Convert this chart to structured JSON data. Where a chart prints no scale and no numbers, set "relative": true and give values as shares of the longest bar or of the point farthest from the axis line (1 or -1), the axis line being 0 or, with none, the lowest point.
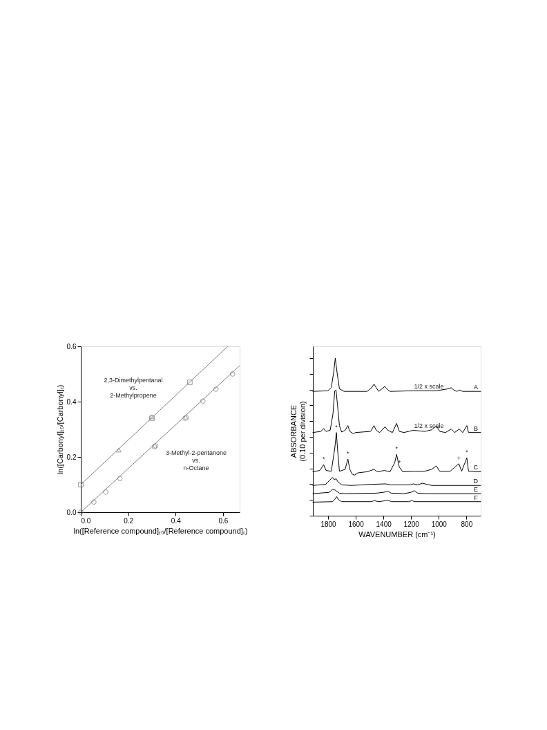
{
  "chart_data": [
    {
      "type": "scatter",
      "xlabel": "ln([Reference compound]ₜ₀/[Reference compound]ₜ)",
      "ylabel": "ln([Carbonyl]ₜ₀/[Carbonyl]ₜ)",
      "xlim": [
        0,
        0.67
      ],
      "ylim": [
        0,
        0.6
      ],
      "xticks": [
        {
          "value": 0,
          "label": "0.0"
        },
        {
          "value": 0.2,
          "label": "0.2"
        },
        {
          "value": 0.4,
          "label": "0.4"
        },
        {
          "value": 0.6,
          "label": "0.6"
        }
      ],
      "yticks": [
        {
          "value": 0,
          "label": "0.0"
        },
        {
          "value": 0.2,
          "label": "0.2"
        },
        {
          "value": 0.4,
          "label": "0.4"
        },
        {
          "value": 0.6,
          "label": "0.6"
        }
      ],
      "grid": false,
      "series": [
        {
          "type": "line",
          "color": "#808080",
          "x": [
            0,
            0.62
          ],
          "values": [
            0.1,
            0.6
          ]
        },
        {
          "type": "line",
          "color": "#808080",
          "x": [
            0,
            0.67
          ],
          "values": [
            0,
            0.53
          ]
        },
        {
          "type": "scatter",
          "marker": "square",
          "color": "#707070",
          "x": [
            0,
            0.3,
            0.46
          ],
          "values": [
            0.1,
            0.34,
            0.47
          ]
        },
        {
          "type": "scatter",
          "marker": "triangle",
          "color": "#707070",
          "x": [
            0.16,
            0.3
          ],
          "values": [
            0.225,
            0.345
          ]
        },
        {
          "type": "scatter",
          "marker": "circle",
          "color": "#707070",
          "x": [
            0,
            0.055,
            0.105,
            0.165,
            0.31,
            0.315,
            0.44,
            0.445,
            0.515,
            0.57,
            0.64
          ],
          "values": [
            0,
            0.037,
            0.073,
            0.122,
            0.237,
            0.24,
            0.34,
            0.342,
            0.402,
            0.445,
            0.5
          ]
        }
      ],
      "annotations": [
        "2,3-Dimethylpentanal\nvs.\n2-Methylpropene",
        "3-Methyl-2-pentanone\nvs.\nn-Octane"
      ]
    },
    {
      "type": "line",
      "relative": true,
      "xlabel": "WAVENUMBER (cm⁻¹)",
      "ylabel": "ABSORBANCE\n(0.10 per division)",
      "xlim": [
        1910,
        697
      ],
      "xticks": [
        1800,
        1600,
        1400,
        1200,
        1000,
        800
      ],
      "grid": false,
      "tick_labels": "x",
      "series": [
        {
          "name": "A",
          "color": "#000000",
          "x": [
            1910,
            1802,
            1777,
            1760,
            1748,
            1735,
            1718,
            1685,
            1518,
            1485,
            1468,
            1452,
            1435,
            1410,
            1390,
            1368,
            1352,
            1185,
            1018,
            927,
            910,
            893,
            868,
            852,
            827,
            697
          ],
          "values": [
            0.789,
            0.793,
            0.813,
            0.908,
            1,
            0.908,
            0.806,
            0.789,
            0.789,
            0.813,
            0.835,
            0.813,
            0.789,
            0.806,
            0.82,
            0.798,
            0.789,
            0.793,
            0.793,
            0.806,
            0.813,
            0.798,
            0.789,
            0.798,
            0.789,
            0.789
          ]
        },
        {
          "name": "B",
          "color": "#000000",
          "x": [
            1910,
            1852,
            1832,
            1815,
            1785,
            1765,
            1752,
            1743,
            1732,
            1718,
            1702,
            1677,
            1657,
            1643,
            1618,
            1602,
            1493,
            1468,
            1452,
            1427,
            1388,
            1368,
            1335,
            1305,
            1285,
            1252,
            1185,
            1102,
            1052,
            1018,
            993,
            952,
            910,
            885,
            852,
            827,
            797,
            785,
            697
          ],
          "values": [
            0.528,
            0.535,
            0.554,
            0.535,
            0.542,
            0.645,
            0.792,
            0.798,
            0.703,
            0.572,
            0.531,
            0.542,
            0.572,
            0.535,
            0.52,
            0.528,
            0.535,
            0.572,
            0.542,
            0.528,
            0.565,
            0.542,
            0.528,
            0.586,
            0.535,
            0.528,
            0.542,
            0.535,
            0.545,
            0.572,
            0.535,
            0.528,
            0.55,
            0.528,
            0.55,
            0.528,
            0.572,
            0.528,
            0.528
          ]
        },
        {
          "name": "C",
          "color": "#000000",
          "x": [
            1910,
            1860,
            1832,
            1815,
            1777,
            1752,
            1740,
            1732,
            1718,
            1677,
            1657,
            1643,
            1627,
            1610,
            1585,
            1518,
            1468,
            1443,
            1393,
            1352,
            1318,
            1305,
            1285,
            1260,
            1185,
            1102,
            1052,
            1018,
            993,
            918,
            855,
            835,
            797,
            785,
            697
          ],
          "values": [
            0.279,
            0.287,
            0.323,
            0.287,
            0.282,
            0.425,
            0.528,
            0.425,
            0.282,
            0.294,
            0.36,
            0.294,
            0.265,
            0.257,
            0.272,
            0.279,
            0.294,
            0.279,
            0.287,
            0.279,
            0.338,
            0.389,
            0.308,
            0.279,
            0.282,
            0.282,
            0.294,
            0.316,
            0.282,
            0.282,
            0.33,
            0.282,
            0.367,
            0.282,
            0.279
          ]
        },
        {
          "name": "D",
          "color": "#000000",
          "x": [
            1910,
            1818,
            1785,
            1768,
            1755,
            1743,
            1727,
            1702,
            1635,
            1485,
            1385,
            1352,
            1202,
            1185,
            1152,
            1118,
            1085,
            1052,
            697
          ],
          "values": [
            0.192,
            0.199,
            0.228,
            0.243,
            0.228,
            0.235,
            0.213,
            0.196,
            0.192,
            0.199,
            0.202,
            0.196,
            0.196,
            0.202,
            0.196,
            0.206,
            0.199,
            0.192,
            0.192
          ]
        },
        {
          "name": "E",
          "color": "#000000",
          "x": [
            1910,
            1793,
            1768,
            1748,
            1718,
            1685,
            1452,
            1402,
            1368,
            1343,
            1252,
            1202,
            1177,
            1152,
            1102,
            697
          ],
          "values": [
            0.14,
            0.148,
            0.167,
            0.162,
            0.143,
            0.14,
            0.143,
            0.148,
            0.155,
            0.143,
            0.14,
            0.148,
            0.159,
            0.143,
            0.14,
            0.14
          ]
        },
        {
          "name": "F",
          "color": "#000000",
          "x": [
            1910,
            1768,
            1752,
            1738,
            1727,
            1702,
            1485,
            1468,
            1435,
            1402,
            1368,
            1343,
            1218,
            1193,
            1177,
            697
          ],
          "values": [
            0.086,
            0.089,
            0.104,
            0.121,
            0.104,
            0.089,
            0.089,
            0.096,
            0.089,
            0.093,
            0.099,
            0.089,
            0.089,
            0.096,
            0.089,
            0.089
          ]
        }
      ],
      "annotations": [
        "1/2 x scale",
        "1/2 x scale",
        {
          "text": "*",
          "x": 1832,
          "y": 0.323
        },
        {
          "text": "*",
          "x": 1740,
          "y": 0.528
        },
        {
          "text": "*",
          "x": 1657,
          "y": 0.36
        },
        {
          "text": "*",
          "x": 1305,
          "y": 0.389
        },
        {
          "text": "+",
          "x": 1285,
          "y": 0.308
        },
        {
          "text": "+",
          "x": 855,
          "y": 0.33
        },
        {
          "text": "*",
          "x": 797,
          "y": 0.367
        }
      ]
    }
  ]
}
